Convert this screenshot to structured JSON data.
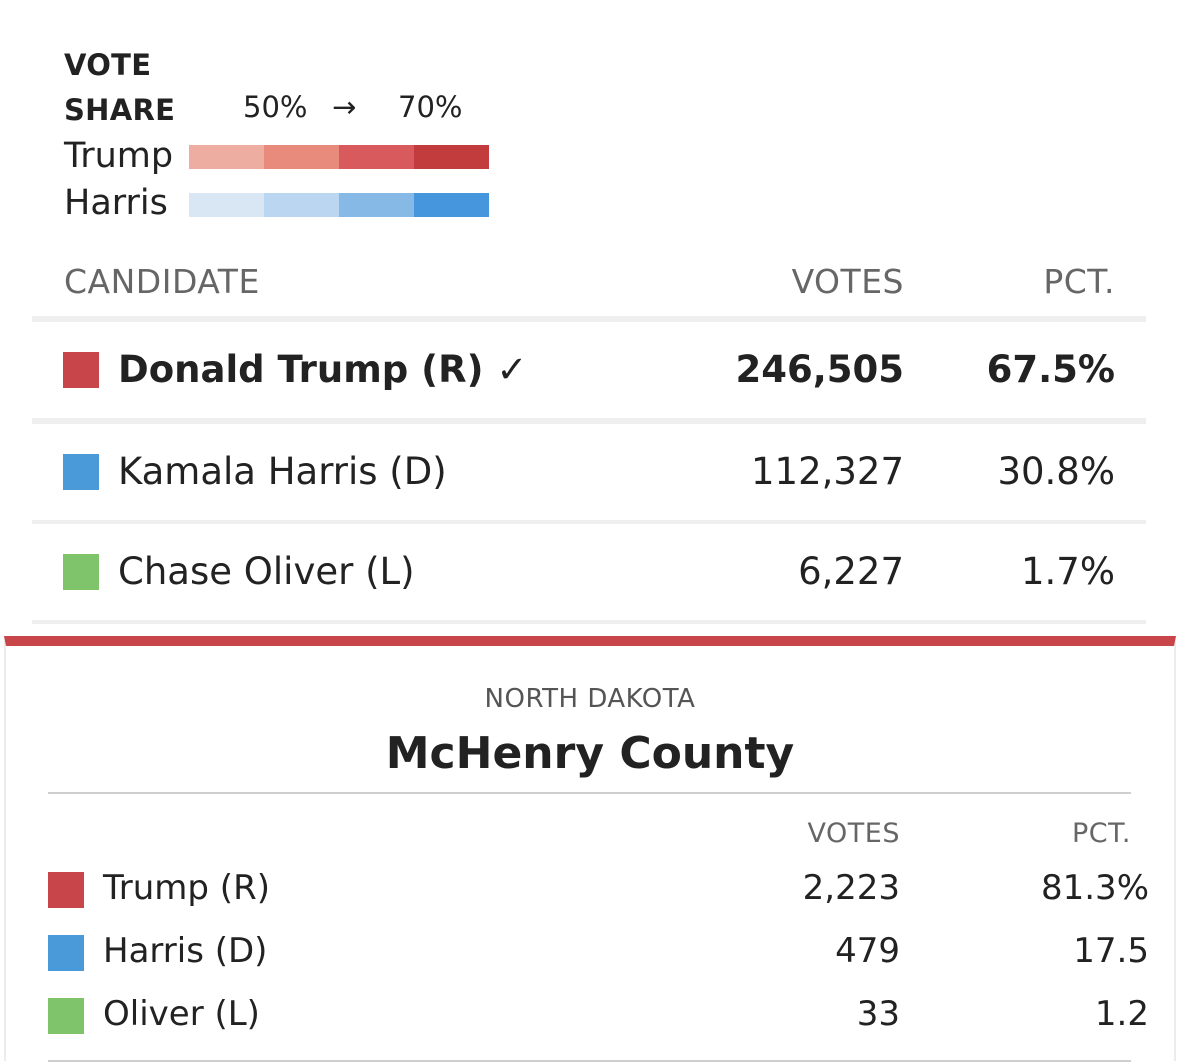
{
  "legend": {
    "title_line1": "VOTE",
    "title_line2": "SHARE",
    "range_low": "50%",
    "range_arrow": "→",
    "range_high": "70%",
    "scales": [
      {
        "name": "Trump",
        "colors": [
          "#eeada1",
          "#e88a7c",
          "#d85a5c",
          "#c23b3d"
        ]
      },
      {
        "name": "Harris",
        "colors": [
          "#d9e6f4",
          "#bad6f0",
          "#86b9e6",
          "#4596dc"
        ]
      }
    ]
  },
  "state_table": {
    "headers": {
      "candidate": "CANDIDATE",
      "votes": "VOTES",
      "pct": "PCT."
    },
    "rows": [
      {
        "name": "Donald Trump (R) ✓",
        "votes": "246,505",
        "pct": "67.5%",
        "color": "#c8464a",
        "winner": true
      },
      {
        "name": "Kamala Harris (D)",
        "votes": "112,327",
        "pct": "30.8%",
        "color": "#4a9ad9",
        "winner": false
      },
      {
        "name": "Chase Oliver (L)",
        "votes": "6,227",
        "pct": "1.7%",
        "color": "#7fc36a",
        "winner": false
      }
    ]
  },
  "county_popup": {
    "state": "NORTH DAKOTA",
    "county": "McHenry County",
    "headers": {
      "votes": "VOTES",
      "pct": "PCT."
    },
    "rows": [
      {
        "name": "Trump (R)",
        "votes": "2,223",
        "pct": "81.3%",
        "color": "#c8464a"
      },
      {
        "name": "Harris (D)",
        "votes": "479",
        "pct": "17.5",
        "color": "#4a9ad9"
      },
      {
        "name": "Oliver (L)",
        "votes": "33",
        "pct": "1.2",
        "color": "#7fc36a"
      }
    ]
  }
}
